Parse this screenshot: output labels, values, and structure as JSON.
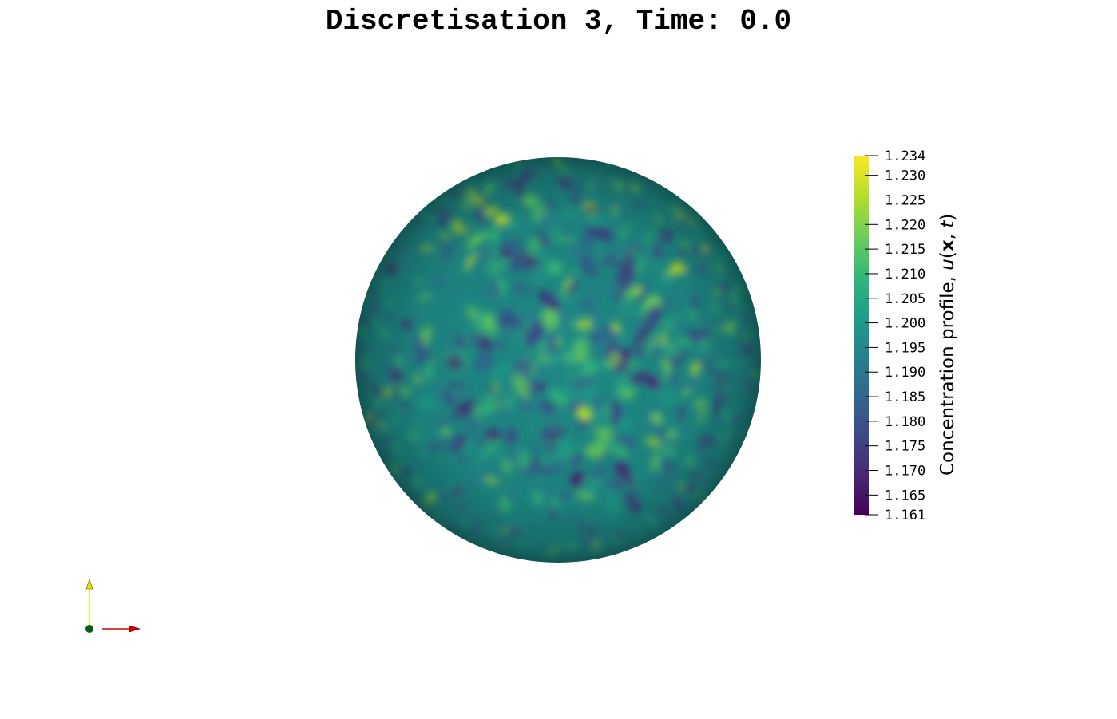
{
  "title": "Discretisation 3, Time: 0.0",
  "colorbar": {
    "title_prefix": "Concentration profile, ",
    "title_u": "u",
    "title_open": "(",
    "title_x": "x",
    "title_sep": ", ",
    "title_t": "t",
    "title_close": ")",
    "min": 1.161,
    "max": 1.234,
    "ticks": [
      "1.234",
      "1.230",
      "1.225",
      "1.220",
      "1.215",
      "1.210",
      "1.205",
      "1.200",
      "1.195",
      "1.190",
      "1.185",
      "1.180",
      "1.175",
      "1.170",
      "1.165",
      "1.161"
    ],
    "colormap": "viridis",
    "colors": [
      "#440154",
      "#482878",
      "#3e4989",
      "#31688e",
      "#26828e",
      "#1f9e89",
      "#35b779",
      "#6ece58",
      "#b5de2b",
      "#fde725"
    ]
  },
  "axes_orientation": {
    "y_axis_color": "#ffff00",
    "x_axis_color": "#d10000",
    "origin_color": "#0b5e0b"
  }
}
